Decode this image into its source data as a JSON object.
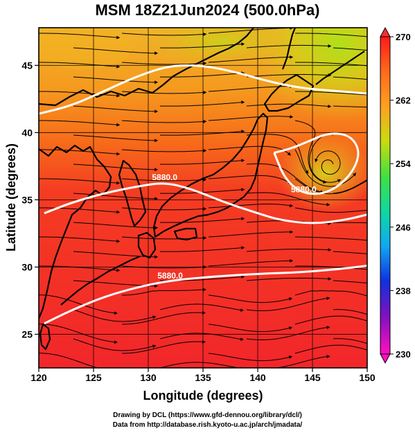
{
  "title": "MSM 18Z21Jun2024 (500.0hPa)",
  "footer": {
    "line1": "Drawing by DCL (https://www.gfd-dennou.org/library/dcl/)",
    "line2": "Data from http://database.rish.kyoto-u.ac.jp/arch/jmadata/"
  },
  "chart_data": {
    "type": "heatmap",
    "xlabel": "Longitude (degrees)",
    "ylabel": "Latitude  (degrees)",
    "xlim": [
      120,
      150
    ],
    "ylim": [
      22.5,
      47.8
    ],
    "xticks": [
      "120",
      "125",
      "130",
      "135",
      "140",
      "145",
      "150"
    ],
    "yticks": [
      "25",
      "30",
      "35",
      "40",
      "45"
    ],
    "grid": true,
    "colorbar": {
      "min": 230,
      "max": 270,
      "tick_labels": [
        "270",
        "262",
        "254",
        "246",
        "238",
        "230"
      ],
      "colors": [
        "#ff1a1a",
        "#ff6a1a",
        "#ffa020",
        "#c8dc10",
        "#40e040",
        "#10d8a0",
        "#10a8f0",
        "#1030e0",
        "#8010c0",
        "#ff10c0"
      ],
      "position": "right"
    },
    "contours": [
      {
        "label": "5880.0",
        "points": [
          [
            120.5,
            25.8
          ],
          [
            123,
            26.8
          ],
          [
            126,
            27.8
          ],
          [
            129,
            28.5
          ],
          [
            132,
            29.0
          ],
          [
            136,
            29.3
          ],
          [
            140,
            29.5
          ],
          [
            144,
            29.6
          ],
          [
            148,
            29.9
          ],
          [
            150,
            30.1
          ]
        ]
      },
      {
        "label": "5880.0",
        "points": [
          [
            120.5,
            34.0
          ],
          [
            123,
            34.8
          ],
          [
            126,
            35.5
          ],
          [
            129,
            36.0
          ],
          [
            131.5,
            36.3
          ],
          [
            134,
            35.8
          ],
          [
            137,
            34.8
          ],
          [
            140,
            34.0
          ],
          [
            142,
            33.5
          ],
          [
            145,
            33.2
          ],
          [
            148,
            33.5
          ],
          [
            150,
            33.9
          ]
        ]
      },
      {
        "label": "5880.0",
        "points": [
          [
            141.5,
            38.5
          ],
          [
            142.5,
            36.5
          ],
          [
            144.2,
            35.4
          ],
          [
            146.5,
            35.5
          ],
          [
            148.5,
            36.8
          ],
          [
            149.4,
            38.5
          ],
          [
            148.5,
            39.8
          ],
          [
            146.5,
            40.0
          ],
          [
            144.5,
            39.3
          ],
          [
            143,
            38.8
          ],
          [
            141.5,
            38.5
          ]
        ]
      },
      {
        "label": "",
        "points": [
          [
            120,
            41.4
          ],
          [
            123,
            42.0
          ],
          [
            126,
            43.1
          ],
          [
            129,
            44.2
          ],
          [
            132,
            45.0
          ],
          [
            135,
            45.0
          ],
          [
            138,
            44.5
          ],
          [
            141,
            43.8
          ],
          [
            144,
            43.3
          ],
          [
            147,
            43.1
          ],
          [
            150,
            42.9
          ]
        ]
      }
    ]
  }
}
